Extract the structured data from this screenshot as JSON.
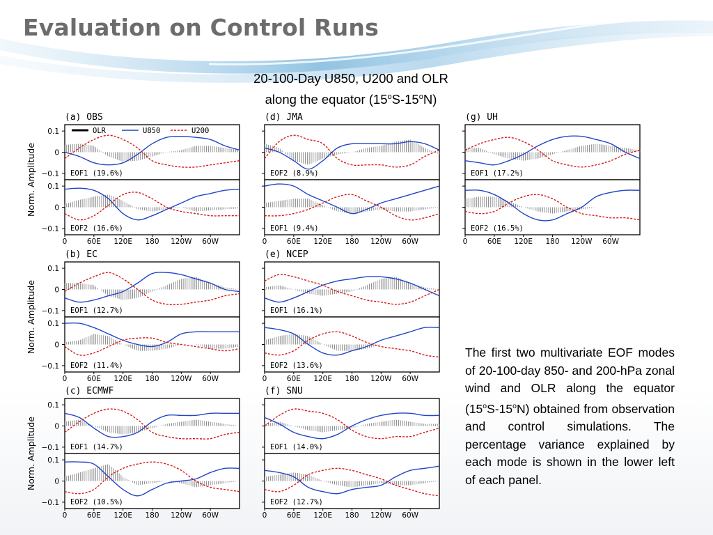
{
  "slide": {
    "title": "Evaluation on Control Runs",
    "subtitle": {
      "line1": "20-100-Day U850, U200 and OLR",
      "line2_pre": "along the equator (15",
      "deg": "o",
      "line2_mid": "S-15",
      "line2_post": "N)"
    },
    "caption": {
      "part1": "The first two multivariate EOF modes of 20-100-day 850- and 200-hPa zonal wind and OLR along the equator (15",
      "deg": "o",
      "part2": "S-15",
      "part3": "N) obtained from observation and control simulations. The percentage variance explained by each mode is shown in the lower left of each panel."
    }
  },
  "colors": {
    "olr": "#000000",
    "u850": "#2345c6",
    "u200": "#d61818",
    "title": "#6c6c6c"
  },
  "chart_data": {
    "type": "line",
    "ylabel": "Norm. Amplitude",
    "ylim": [
      -0.13,
      0.13
    ],
    "yticks": [
      "0.1",
      "0",
      "−0.1"
    ],
    "yticks_values": [
      0.1,
      0,
      -0.1
    ],
    "xticks": [
      "0",
      "60E",
      "120E",
      "180",
      "120W",
      "60W"
    ],
    "xlim_degE": [
      0,
      360
    ],
    "xticks_values": [
      0,
      60,
      120,
      180,
      240,
      300
    ],
    "x": [
      0,
      30,
      60,
      90,
      120,
      150,
      180,
      210,
      240,
      270,
      300,
      330,
      360
    ],
    "legend": {
      "olr": "OLR",
      "u850": "U850",
      "u200": "U200"
    },
    "models": [
      {
        "id": "OBS",
        "title": "(a)  OBS",
        "show_legend": true,
        "modes": [
          {
            "label": "EOF1 (19.6%)",
            "olr": [
              0.035,
              0.04,
              0.03,
              -0.02,
              -0.045,
              -0.04,
              -0.02,
              0.0,
              0.01,
              0.03,
              0.03,
              0.02,
              0.01
            ],
            "u850": [
              0.0,
              -0.02,
              -0.05,
              -0.06,
              -0.05,
              -0.01,
              0.04,
              0.07,
              0.075,
              0.07,
              0.06,
              0.03,
              0.01
            ],
            "u200": [
              -0.03,
              0.02,
              0.06,
              0.08,
              0.06,
              0.02,
              -0.04,
              -0.06,
              -0.07,
              -0.07,
              -0.06,
              -0.05,
              -0.04
            ]
          },
          {
            "label": "EOF2 (16.6%)",
            "olr": [
              0.015,
              0.035,
              0.05,
              0.06,
              0.03,
              -0.01,
              -0.02,
              -0.01,
              0.0,
              -0.02,
              -0.015,
              -0.01,
              -0.005
            ],
            "u850": [
              0.085,
              0.09,
              0.08,
              0.04,
              -0.03,
              -0.06,
              -0.04,
              -0.01,
              0.02,
              0.05,
              0.065,
              0.08,
              0.085
            ],
            "u200": [
              -0.03,
              -0.06,
              -0.04,
              0.01,
              0.06,
              0.07,
              0.04,
              0.0,
              -0.02,
              -0.03,
              -0.04,
              -0.04,
              -0.04
            ]
          }
        ]
      },
      {
        "id": "JMA",
        "title": "(d)  JMA",
        "show_legend": false,
        "modes": [
          {
            "label": "EOF2 (8.9%)",
            "olr": [
              0.04,
              0.02,
              -0.04,
              -0.06,
              -0.03,
              -0.01,
              0.0,
              0.02,
              0.03,
              0.05,
              0.06,
              0.02,
              -0.01
            ],
            "u850": [
              0.02,
              0.0,
              -0.04,
              -0.08,
              -0.04,
              0.02,
              0.04,
              0.04,
              0.04,
              0.04,
              0.05,
              0.04,
              0.01
            ],
            "u200": [
              -0.03,
              0.05,
              0.08,
              0.06,
              0.04,
              -0.03,
              -0.06,
              -0.06,
              -0.06,
              -0.07,
              -0.06,
              -0.02,
              0.01
            ]
          },
          {
            "label": "EOF1 (9.4%)",
            "olr": [
              0.02,
              0.03,
              0.04,
              0.04,
              0.01,
              -0.02,
              -0.03,
              -0.02,
              -0.01,
              -0.02,
              -0.02,
              -0.01,
              0.0
            ],
            "u850": [
              0.1,
              0.11,
              0.1,
              0.06,
              0.03,
              0.0,
              -0.03,
              -0.01,
              0.02,
              0.04,
              0.06,
              0.08,
              0.1
            ],
            "u200": [
              -0.04,
              -0.04,
              -0.03,
              -0.01,
              0.02,
              0.05,
              0.06,
              0.03,
              0.0,
              -0.04,
              -0.06,
              -0.05,
              -0.03
            ]
          }
        ]
      },
      {
        "id": "UH",
        "title": "(g)  UH",
        "show_legend": false,
        "modes": [
          {
            "label": "EOF1 (17.2%)",
            "olr": [
              0.02,
              0.02,
              -0.01,
              -0.03,
              -0.04,
              -0.03,
              -0.01,
              0.01,
              0.03,
              0.04,
              0.03,
              0.02,
              0.01
            ],
            "u850": [
              -0.04,
              -0.05,
              -0.06,
              -0.04,
              -0.01,
              0.03,
              0.06,
              0.075,
              0.075,
              0.06,
              0.04,
              0.0,
              -0.03
            ],
            "u200": [
              0.01,
              0.04,
              0.06,
              0.07,
              0.05,
              0.01,
              -0.04,
              -0.06,
              -0.07,
              -0.06,
              -0.04,
              -0.01,
              0.01
            ]
          },
          {
            "label": "EOF2 (16.5%)",
            "olr": [
              0.04,
              0.05,
              0.05,
              0.03,
              0.0,
              -0.02,
              -0.03,
              -0.02,
              -0.01,
              0.0,
              0.0,
              0.0,
              0.0
            ],
            "u850": [
              0.08,
              0.08,
              0.06,
              0.02,
              -0.03,
              -0.06,
              -0.06,
              -0.03,
              0.0,
              0.05,
              0.07,
              0.08,
              0.08
            ],
            "u200": [
              -0.02,
              -0.03,
              -0.02,
              0.02,
              0.05,
              0.06,
              0.04,
              0.0,
              -0.03,
              -0.04,
              -0.05,
              -0.05,
              -0.06
            ]
          }
        ]
      },
      {
        "id": "EC",
        "title": "(b)  EC",
        "show_legend": false,
        "modes": [
          {
            "label": "EOF1 (12.7%)",
            "olr": [
              0.03,
              0.03,
              0.02,
              -0.03,
              -0.05,
              -0.04,
              -0.01,
              0.02,
              0.05,
              0.06,
              0.03,
              0.01,
              0.0
            ],
            "u850": [
              -0.04,
              -0.06,
              -0.05,
              -0.03,
              -0.01,
              0.03,
              0.075,
              0.08,
              0.07,
              0.05,
              0.03,
              0.0,
              -0.01
            ],
            "u200": [
              -0.01,
              0.03,
              0.06,
              0.08,
              0.05,
              0.0,
              -0.05,
              -0.07,
              -0.07,
              -0.06,
              -0.05,
              -0.03,
              -0.02
            ]
          },
          {
            "label": "EOF2 (11.4%)",
            "olr": [
              0.01,
              0.02,
              0.05,
              0.04,
              0.0,
              -0.03,
              -0.03,
              -0.02,
              0.0,
              0.0,
              -0.02,
              -0.02,
              -0.01
            ],
            "u850": [
              0.1,
              0.1,
              0.08,
              0.05,
              0.02,
              0.0,
              -0.01,
              0.01,
              0.05,
              0.06,
              0.06,
              0.06,
              0.06
            ],
            "u200": [
              -0.01,
              -0.05,
              -0.04,
              -0.01,
              0.02,
              0.03,
              0.03,
              0.01,
              0.0,
              -0.01,
              -0.02,
              -0.03,
              -0.02
            ]
          }
        ]
      },
      {
        "id": "NCEP",
        "title": "(e)  NCEP",
        "show_legend": false,
        "modes": [
          {
            "label": "EOF1 (16.1%)",
            "olr": [
              0.01,
              0.02,
              0.0,
              -0.02,
              -0.03,
              -0.02,
              -0.01,
              0.02,
              0.05,
              0.06,
              0.03,
              0.01,
              0.0
            ],
            "u850": [
              -0.04,
              -0.06,
              -0.04,
              -0.01,
              0.02,
              0.04,
              0.05,
              0.06,
              0.06,
              0.05,
              0.03,
              0.0,
              -0.03
            ],
            "u200": [
              0.04,
              0.07,
              0.06,
              0.04,
              0.02,
              -0.01,
              -0.03,
              -0.05,
              -0.06,
              -0.07,
              -0.06,
              -0.03,
              0.0
            ]
          },
          {
            "label": "EOF2 (13.6%)",
            "olr": [
              0.02,
              0.04,
              0.05,
              0.04,
              0.0,
              -0.03,
              -0.03,
              -0.02,
              0.0,
              0.0,
              0.0,
              0.0,
              0.0
            ],
            "u850": [
              0.08,
              0.07,
              0.05,
              0.0,
              -0.04,
              -0.05,
              -0.03,
              -0.01,
              0.02,
              0.04,
              0.06,
              0.08,
              0.08
            ],
            "u200": [
              -0.04,
              -0.05,
              -0.03,
              0.02,
              0.05,
              0.06,
              0.04,
              0.01,
              -0.01,
              -0.02,
              -0.03,
              -0.05,
              -0.06
            ]
          }
        ]
      },
      {
        "id": "ECMWF",
        "title": "(c)  ECMWF",
        "show_legend": false,
        "modes": [
          {
            "label": "EOF1 (14.7%)",
            "olr": [
              0.02,
              0.03,
              0.0,
              -0.03,
              -0.04,
              -0.03,
              -0.01,
              0.01,
              0.02,
              0.03,
              0.02,
              0.01,
              0.0
            ],
            "u850": [
              0.06,
              0.04,
              -0.01,
              -0.05,
              -0.05,
              -0.03,
              0.02,
              0.05,
              0.05,
              0.05,
              0.06,
              0.06,
              0.06
            ],
            "u200": [
              -0.03,
              0.02,
              0.06,
              0.08,
              0.07,
              0.03,
              -0.03,
              -0.05,
              -0.06,
              -0.06,
              -0.06,
              -0.04,
              -0.03
            ]
          },
          {
            "label": "EOF2 (10.5%)",
            "olr": [
              0.02,
              0.04,
              0.06,
              0.08,
              0.02,
              -0.02,
              -0.01,
              0.0,
              -0.01,
              -0.03,
              -0.02,
              -0.01,
              0.0
            ],
            "u850": [
              0.09,
              0.09,
              0.08,
              0.02,
              -0.04,
              -0.07,
              -0.04,
              -0.01,
              0.0,
              0.01,
              0.04,
              0.06,
              0.06
            ],
            "u200": [
              -0.05,
              -0.06,
              -0.04,
              0.02,
              0.06,
              0.08,
              0.09,
              0.08,
              0.05,
              0.0,
              -0.03,
              -0.04,
              -0.05
            ]
          }
        ]
      },
      {
        "id": "SNU",
        "title": "(f)  SNU",
        "show_legend": false,
        "modes": [
          {
            "label": "EOF1 (14.0%)",
            "olr": [
              0.01,
              0.02,
              0.0,
              -0.02,
              -0.03,
              -0.02,
              -0.01,
              0.01,
              0.02,
              0.03,
              0.02,
              0.01,
              0.01
            ],
            "u850": [
              0.04,
              0.01,
              -0.03,
              -0.05,
              -0.06,
              -0.04,
              0.0,
              0.03,
              0.05,
              0.06,
              0.06,
              0.05,
              0.05
            ],
            "u200": [
              0.0,
              0.05,
              0.08,
              0.07,
              0.06,
              0.03,
              -0.02,
              -0.05,
              -0.06,
              -0.05,
              -0.05,
              -0.03,
              -0.01
            ]
          },
          {
            "label": "EOF2 (12.7%)",
            "olr": [
              0.02,
              0.03,
              0.04,
              0.03,
              0.0,
              -0.02,
              -0.03,
              -0.02,
              -0.01,
              -0.02,
              -0.02,
              -0.01,
              0.0
            ],
            "u850": [
              0.05,
              0.04,
              0.02,
              -0.03,
              -0.05,
              -0.06,
              -0.04,
              -0.03,
              -0.02,
              0.02,
              0.05,
              0.06,
              0.07
            ],
            "u200": [
              -0.04,
              -0.05,
              -0.02,
              0.03,
              0.05,
              0.06,
              0.05,
              0.03,
              0.01,
              -0.02,
              -0.04,
              -0.06,
              -0.07
            ]
          }
        ]
      }
    ]
  }
}
